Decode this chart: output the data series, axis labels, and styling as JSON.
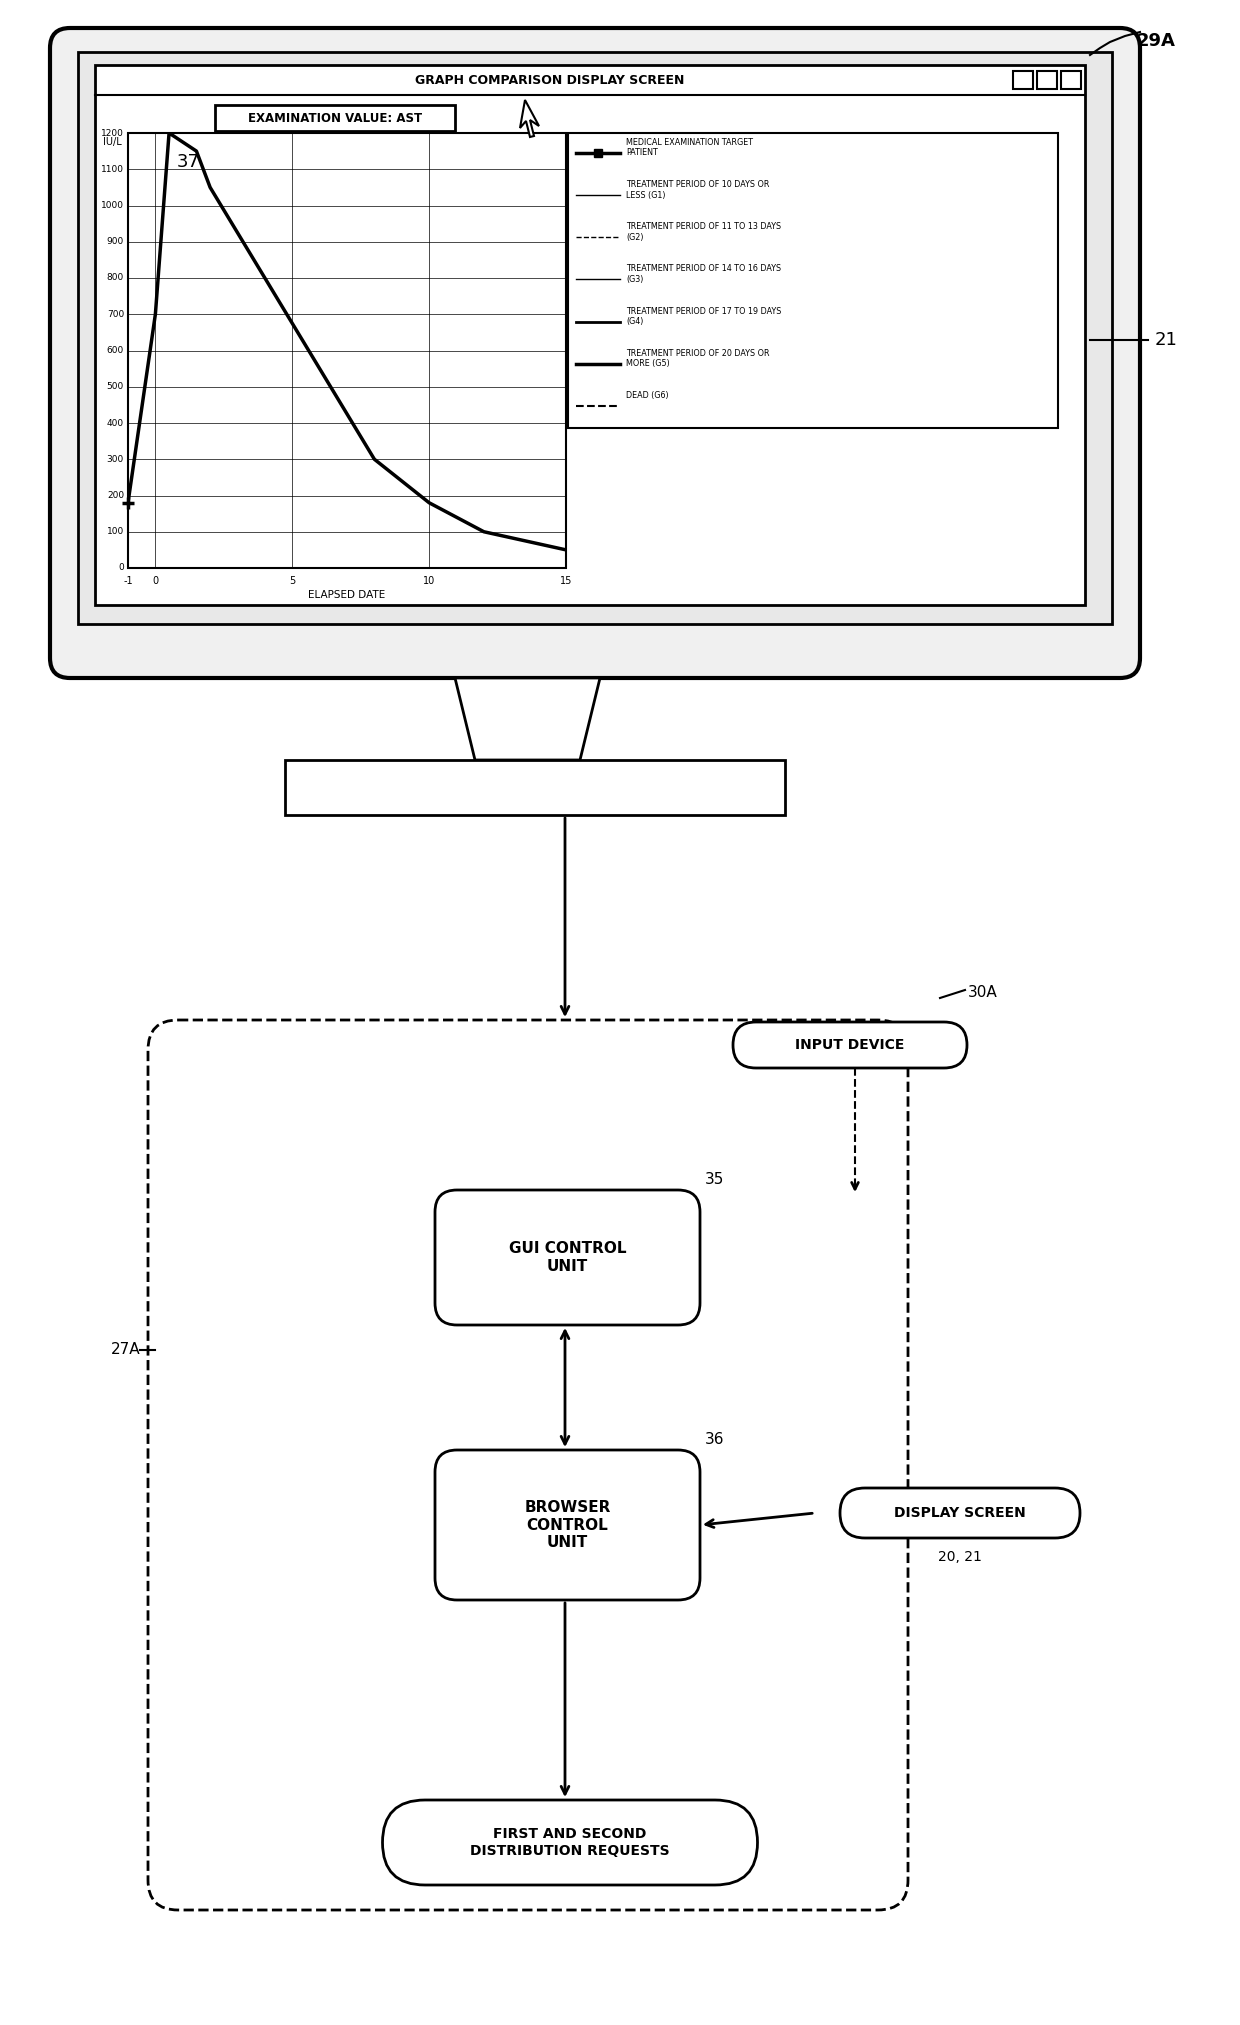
{
  "bg_color": "#ffffff",
  "title_label": "29A",
  "monitor_label": "21",
  "label_37": "37",
  "label_30A": "30A",
  "label_27A": "27A",
  "label_35": "35",
  "label_36": "36",
  "label_2021": "20, 21",
  "screen_title": "GRAPH COMPARISON DISPLAY SCREEN",
  "exam_value_label": "EXAMINATION VALUE: AST",
  "y_axis_label": "IU/L",
  "x_axis_label": "ELAPSED DATE",
  "y_ticks": [
    0,
    100,
    200,
    300,
    400,
    500,
    600,
    700,
    800,
    900,
    1000,
    1100,
    1200
  ],
  "x_ticks": [
    -1,
    0,
    5,
    10,
    15
  ],
  "legend_entries": [
    {
      "label": "MEDICAL EXAMINATION TARGET\nPATIENT",
      "style": "solid_thick",
      "ls": "-",
      "lw": 2.5
    },
    {
      "label": "TREATMENT PERIOD OF 10 DAYS OR\nLESS (G1)",
      "style": "solid_thin",
      "ls": "-",
      "lw": 1.0
    },
    {
      "label": "TREATMENT PERIOD OF 11 TO 13 DAYS\n(G2)",
      "style": "dashed",
      "ls": "--",
      "lw": 1.0
    },
    {
      "label": "TREATMENT PERIOD OF 14 TO 16 DAYS\n(G3)",
      "style": "solid_thin",
      "ls": "-",
      "lw": 1.0
    },
    {
      "label": "TREATMENT PERIOD OF 17 TO 19 DAYS\n(G4)",
      "style": "solid_thick2",
      "ls": "-",
      "lw": 2.0
    },
    {
      "label": "TREATMENT PERIOD OF 20 DAYS OR\nMORE (G5)",
      "style": "solid_thick3",
      "ls": "-",
      "lw": 2.5
    },
    {
      "label": "DEAD (G6)",
      "style": "dashed2",
      "ls": "--",
      "lw": 1.5
    }
  ],
  "input_device_label": "INPUT DEVICE",
  "gui_label": "GUI CONTROL\nUNIT",
  "browser_label": "BROWSER\nCONTROL\nUNIT",
  "display_screen_label": "DISPLAY SCREEN",
  "dist_label": "FIRST AND SECOND\nDISTRIBUTION REQUESTS"
}
